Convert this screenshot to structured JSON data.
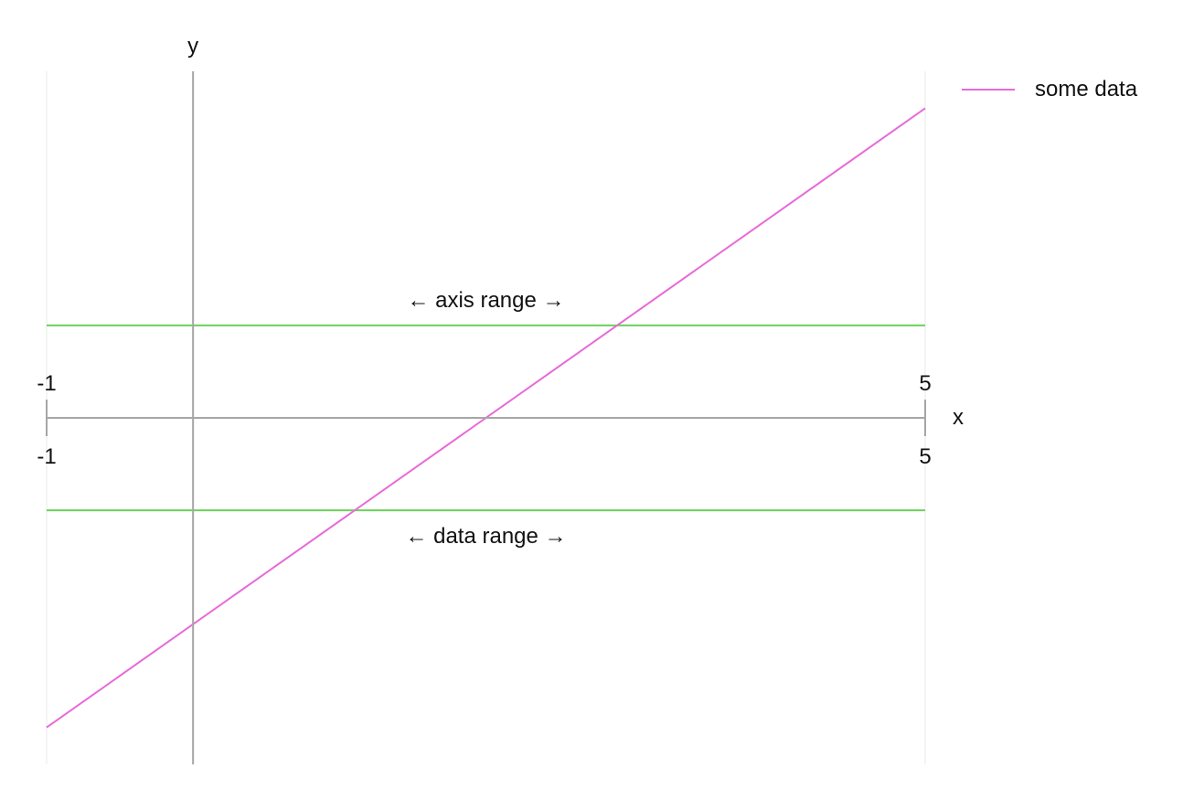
{
  "chart_data": {
    "type": "line",
    "xlabel": "x",
    "ylabel": "y",
    "xlim": [
      -1,
      5
    ],
    "x_ticks_top": [
      "-1",
      "5"
    ],
    "x_ticks_bottom": [
      "-1",
      "5"
    ],
    "series": [
      {
        "name": "some data",
        "x": [
          -1,
          5
        ],
        "y": [
          -3.35,
          3.35
        ],
        "color": "#e86ad8"
      }
    ],
    "reference_lines": [
      {
        "label": "← axis range →",
        "y": 1.0,
        "color": "#6cd15a"
      },
      {
        "label": "← data range →",
        "y": -1.0,
        "color": "#6cd15a"
      }
    ],
    "ylim": [
      -3.75,
      3.75
    ],
    "axis_color": "#a6a6a6",
    "grid_color": "#e8e8e8",
    "legend_position": "top-right",
    "grid": false
  }
}
